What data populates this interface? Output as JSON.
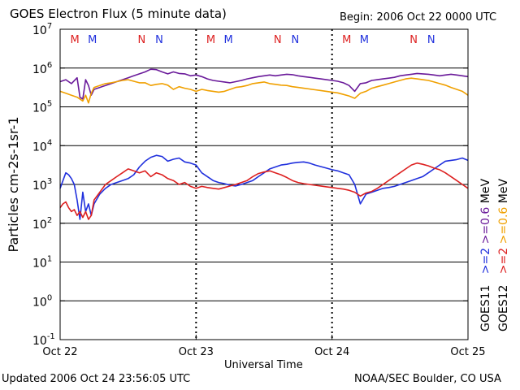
{
  "header": {
    "title": "GOES Electron Flux (5 minute data)",
    "begin": "Begin: 2006 Oct 22 0000 UTC"
  },
  "footer": {
    "updated": "Updated 2006 Oct 24 23:56:05 UTC",
    "credit": "NOAA/SEC Boulder, CO USA"
  },
  "chart_data": {
    "type": "line",
    "title": "GOES Electron Flux (5 minute data)",
    "xlabel": "Universal Time",
    "ylabel": "Particles cm-2s-1sr-1",
    "yscale": "log",
    "ylim_exponent": [
      -1,
      7
    ],
    "y_tick_labels": [
      {
        "base": "10",
        "exp": "-1",
        "value": -1
      },
      {
        "base": "10",
        "exp": "0",
        "value": 0
      },
      {
        "base": "10",
        "exp": "1",
        "value": 1
      },
      {
        "base": "10",
        "exp": "2",
        "value": 2
      },
      {
        "base": "10",
        "exp": "3",
        "value": 3
      },
      {
        "base": "10",
        "exp": "4",
        "value": 4
      },
      {
        "base": "10",
        "exp": "5",
        "value": 5
      },
      {
        "base": "10",
        "exp": "6",
        "value": 6
      },
      {
        "base": "10",
        "exp": "7",
        "value": 7
      }
    ],
    "x_unit": "hours since 2006 Oct 22 0000 UTC",
    "xlim": [
      0,
      72
    ],
    "x_tick_labels": [
      {
        "label": "Oct 22",
        "hour": 0
      },
      {
        "label": "Oct 23",
        "hour": 24
      },
      {
        "label": "Oct 24",
        "hour": 48
      },
      {
        "label": "Oct 25",
        "hour": 72
      }
    ],
    "reference_line_exponent": 3,
    "markers": [
      {
        "label": "M",
        "hour": 2.6,
        "color": "#dd2020"
      },
      {
        "label": "M",
        "hour": 5.7,
        "color": "#2030dd"
      },
      {
        "label": "N",
        "hour": 14.4,
        "color": "#dd2020"
      },
      {
        "label": "N",
        "hour": 17.5,
        "color": "#2030dd"
      },
      {
        "label": "M",
        "hour": 26.6,
        "color": "#dd2020"
      },
      {
        "label": "M",
        "hour": 29.7,
        "color": "#2030dd"
      },
      {
        "label": "N",
        "hour": 38.4,
        "color": "#dd2020"
      },
      {
        "label": "N",
        "hour": 41.5,
        "color": "#2030dd"
      },
      {
        "label": "M",
        "hour": 50.6,
        "color": "#dd2020"
      },
      {
        "label": "M",
        "hour": 53.7,
        "color": "#2030dd"
      },
      {
        "label": "N",
        "hour": 62.4,
        "color": "#dd2020"
      },
      {
        "label": "N",
        "hour": 65.5,
        "color": "#2030dd"
      }
    ],
    "legend": [
      {
        "satellite": "GOES11",
        "energy": ">=2",
        "energy2": ">=0.6",
        "unit": "MeV",
        "color2": "#2030dd",
        "color06": "#6a1a9a"
      },
      {
        "satellite": "GOES12",
        "energy": ">=2",
        "energy2": ">=0.6",
        "unit": "MeV",
        "color2": "#dd2020",
        "color06": "#f0a000"
      }
    ],
    "series": [
      {
        "name": "GOES11 >=0.6 MeV",
        "color": "#6a1a9a",
        "x": [
          0,
          1,
          2,
          3,
          3.5,
          4,
          4.5,
          5,
          5.5,
          6,
          7,
          8,
          9,
          10,
          11,
          12,
          13,
          14,
          15,
          16,
          17,
          18,
          19,
          20,
          21,
          22,
          23,
          24,
          25,
          26,
          27,
          28,
          29,
          30,
          31,
          32,
          33,
          34,
          35,
          36,
          37,
          38,
          39,
          40,
          41,
          42,
          43,
          44,
          45,
          46,
          47,
          48,
          49,
          50,
          51,
          52,
          53,
          54,
          55,
          56,
          57,
          58,
          59,
          60,
          61,
          62,
          63,
          64,
          65,
          66,
          67,
          68,
          69,
          70,
          71,
          72
        ],
        "y": [
          5.65,
          5.7,
          5.6,
          5.75,
          5.25,
          5.2,
          5.7,
          5.55,
          5.3,
          5.45,
          5.5,
          5.55,
          5.6,
          5.65,
          5.7,
          5.75,
          5.8,
          5.85,
          5.9,
          5.97,
          5.96,
          5.9,
          5.85,
          5.9,
          5.86,
          5.85,
          5.8,
          5.82,
          5.78,
          5.72,
          5.68,
          5.66,
          5.64,
          5.62,
          5.65,
          5.68,
          5.72,
          5.75,
          5.78,
          5.8,
          5.82,
          5.8,
          5.82,
          5.84,
          5.83,
          5.8,
          5.78,
          5.76,
          5.74,
          5.72,
          5.7,
          5.68,
          5.66,
          5.62,
          5.55,
          5.4,
          5.6,
          5.62,
          5.68,
          5.7,
          5.72,
          5.74,
          5.76,
          5.8,
          5.82,
          5.84,
          5.86,
          5.85,
          5.84,
          5.82,
          5.8,
          5.82,
          5.84,
          5.82,
          5.8,
          5.78
        ]
      },
      {
        "name": "GOES12 >=0.6 MeV",
        "color": "#f0a000",
        "x": [
          0,
          1,
          2,
          3,
          4,
          4.5,
          5,
          5.5,
          6,
          7,
          8,
          9,
          10,
          11,
          12,
          13,
          14,
          15,
          16,
          17,
          18,
          19,
          20,
          21,
          22,
          23,
          24,
          25,
          26,
          27,
          28,
          29,
          30,
          31,
          32,
          33,
          34,
          35,
          36,
          37,
          38,
          39,
          40,
          41,
          42,
          43,
          44,
          45,
          46,
          47,
          48,
          49,
          50,
          51,
          52,
          53,
          54,
          55,
          56,
          57,
          58,
          59,
          60,
          61,
          62,
          63,
          64,
          65,
          66,
          67,
          68,
          69,
          70,
          71,
          72
        ],
        "y": [
          5.4,
          5.35,
          5.3,
          5.25,
          5.15,
          5.3,
          5.1,
          5.35,
          5.5,
          5.55,
          5.6,
          5.62,
          5.65,
          5.68,
          5.7,
          5.66,
          5.62,
          5.62,
          5.55,
          5.58,
          5.6,
          5.56,
          5.45,
          5.52,
          5.48,
          5.45,
          5.4,
          5.45,
          5.42,
          5.4,
          5.38,
          5.4,
          5.45,
          5.5,
          5.52,
          5.55,
          5.6,
          5.62,
          5.64,
          5.6,
          5.58,
          5.56,
          5.55,
          5.52,
          5.5,
          5.48,
          5.46,
          5.44,
          5.42,
          5.4,
          5.38,
          5.36,
          5.32,
          5.28,
          5.22,
          5.35,
          5.4,
          5.48,
          5.52,
          5.56,
          5.6,
          5.64,
          5.68,
          5.72,
          5.74,
          5.72,
          5.7,
          5.68,
          5.64,
          5.6,
          5.56,
          5.5,
          5.45,
          5.4,
          5.3
        ]
      },
      {
        "name": "GOES11 >=2 MeV",
        "color": "#2030dd",
        "x": [
          0,
          0.5,
          1,
          1.5,
          2,
          2.5,
          3,
          3.5,
          4,
          4.5,
          5,
          5.5,
          6,
          7,
          8,
          9,
          10,
          11,
          12,
          13,
          14,
          15,
          16,
          17,
          18,
          19,
          20,
          21,
          22,
          23,
          24,
          25,
          26,
          27,
          28,
          29,
          30,
          31,
          32,
          33,
          34,
          35,
          36,
          37,
          38,
          39,
          40,
          41,
          42,
          43,
          44,
          45,
          46,
          47,
          48,
          49,
          50,
          51,
          52,
          53,
          54,
          55,
          56,
          57,
          58,
          59,
          60,
          61,
          62,
          63,
          64,
          65,
          66,
          67,
          68,
          69,
          70,
          71,
          72
        ],
        "y": [
          2.9,
          3.1,
          3.3,
          3.25,
          3.15,
          3.0,
          2.6,
          2.1,
          2.8,
          2.3,
          2.5,
          2.2,
          2.5,
          2.75,
          2.9,
          3.0,
          3.05,
          3.1,
          3.15,
          3.25,
          3.45,
          3.6,
          3.7,
          3.75,
          3.72,
          3.6,
          3.65,
          3.68,
          3.58,
          3.55,
          3.5,
          3.3,
          3.2,
          3.1,
          3.05,
          3.02,
          2.98,
          2.96,
          3.0,
          3.05,
          3.1,
          3.2,
          3.3,
          3.4,
          3.45,
          3.5,
          3.52,
          3.55,
          3.57,
          3.58,
          3.55,
          3.5,
          3.46,
          3.42,
          3.38,
          3.35,
          3.3,
          3.25,
          3.0,
          2.5,
          2.75,
          2.8,
          2.85,
          2.9,
          2.92,
          2.95,
          3.0,
          3.05,
          3.1,
          3.15,
          3.2,
          3.3,
          3.4,
          3.5,
          3.6,
          3.62,
          3.64,
          3.68,
          3.62
        ]
      },
      {
        "name": "GOES12 >=2 MeV",
        "color": "#dd2020",
        "x": [
          0,
          0.5,
          1,
          1.5,
          2,
          2.5,
          3,
          3.5,
          4,
          4.5,
          5,
          5.5,
          6,
          7,
          8,
          9,
          10,
          11,
          12,
          13,
          14,
          15,
          16,
          17,
          18,
          19,
          20,
          21,
          22,
          23,
          24,
          25,
          26,
          27,
          28,
          29,
          30,
          31,
          32,
          33,
          34,
          35,
          36,
          37,
          38,
          39,
          40,
          41,
          42,
          43,
          44,
          45,
          46,
          47,
          48,
          49,
          50,
          51,
          52,
          53,
          54,
          55,
          56,
          57,
          58,
          59,
          60,
          61,
          62,
          63,
          64,
          65,
          66,
          67,
          68,
          69,
          70,
          71,
          72
        ],
        "y": [
          2.4,
          2.5,
          2.55,
          2.4,
          2.3,
          2.35,
          2.2,
          2.3,
          2.15,
          2.3,
          2.1,
          2.2,
          2.6,
          2.8,
          3.0,
          3.1,
          3.2,
          3.3,
          3.4,
          3.35,
          3.3,
          3.35,
          3.2,
          3.3,
          3.25,
          3.15,
          3.1,
          3.0,
          3.05,
          2.95,
          2.9,
          2.95,
          2.92,
          2.9,
          2.88,
          2.92,
          2.96,
          3.0,
          3.05,
          3.1,
          3.2,
          3.28,
          3.32,
          3.35,
          3.3,
          3.25,
          3.18,
          3.1,
          3.05,
          3.02,
          3.0,
          2.98,
          2.96,
          2.94,
          2.92,
          2.9,
          2.88,
          2.85,
          2.8,
          2.7,
          2.78,
          2.82,
          2.9,
          3.0,
          3.1,
          3.2,
          3.3,
          3.4,
          3.5,
          3.55,
          3.52,
          3.48,
          3.42,
          3.38,
          3.3,
          3.2,
          3.1,
          3.0,
          2.9
        ]
      }
    ]
  }
}
